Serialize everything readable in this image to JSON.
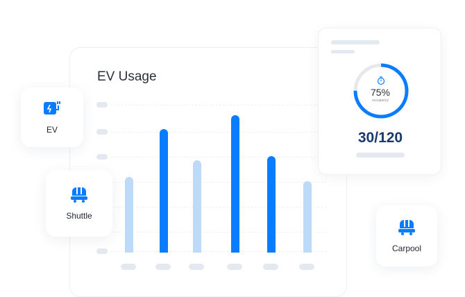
{
  "chart_data": {
    "type": "bar",
    "title": "EV Usage",
    "values": [
      55,
      90,
      67,
      100,
      70,
      52
    ],
    "colors": [
      "#bddaf9",
      "#0a7cff",
      "#bddaf9",
      "#0a7cff",
      "#0a7cff",
      "#bddaf9"
    ]
  },
  "cards": {
    "ev": {
      "label": "EV",
      "icon": "ev-charger-icon"
    },
    "shuttle": {
      "label": "Shuttle",
      "icon": "shuttle-icon"
    },
    "carpool": {
      "label": "Carpool",
      "icon": "shuttle-icon"
    }
  },
  "occupancy": {
    "percent_label": "75%",
    "percent": 75,
    "caption": "occupancy",
    "count": "30/120",
    "icon": "stopwatch-icon"
  },
  "colors": {
    "accent": "#0a7cff",
    "light": "#bddaf9",
    "count": "#1a3a6b"
  }
}
